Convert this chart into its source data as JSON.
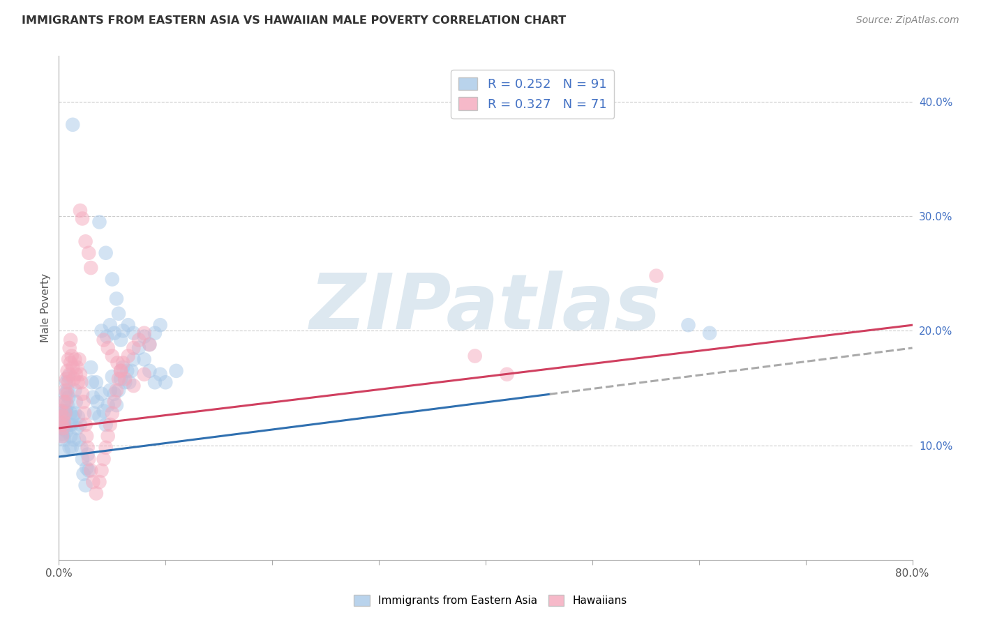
{
  "title": "IMMIGRANTS FROM EASTERN ASIA VS HAWAIIAN MALE POVERTY CORRELATION CHART",
  "source": "Source: ZipAtlas.com",
  "ylabel": "Male Poverty",
  "legend_labels": [
    "Immigrants from Eastern Asia",
    "Hawaiians"
  ],
  "r_blue": 0.252,
  "n_blue": 91,
  "r_pink": 0.327,
  "n_pink": 71,
  "xlim": [
    0.0,
    0.8
  ],
  "ylim": [
    0.0,
    0.44
  ],
  "xtick_show": [
    0.0,
    0.8
  ],
  "yticks_right": [
    0.1,
    0.2,
    0.3,
    0.4
  ],
  "blue_color": "#a8c8e8",
  "pink_color": "#f4a8bc",
  "blue_line_color": "#3070b0",
  "pink_line_color": "#d04060",
  "blue_dash_color": "#aaaaaa",
  "blue_scatter": [
    [
      0.002,
      0.125
    ],
    [
      0.002,
      0.115
    ],
    [
      0.003,
      0.13
    ],
    [
      0.003,
      0.11
    ],
    [
      0.004,
      0.12
    ],
    [
      0.004,
      0.108
    ],
    [
      0.004,
      0.095
    ],
    [
      0.005,
      0.138
    ],
    [
      0.005,
      0.118
    ],
    [
      0.005,
      0.105
    ],
    [
      0.006,
      0.145
    ],
    [
      0.006,
      0.13
    ],
    [
      0.006,
      0.115
    ],
    [
      0.007,
      0.155
    ],
    [
      0.007,
      0.13
    ],
    [
      0.007,
      0.112
    ],
    [
      0.008,
      0.148
    ],
    [
      0.008,
      0.135
    ],
    [
      0.009,
      0.16
    ],
    [
      0.009,
      0.142
    ],
    [
      0.01,
      0.118
    ],
    [
      0.01,
      0.098
    ],
    [
      0.011,
      0.128
    ],
    [
      0.011,
      0.108
    ],
    [
      0.012,
      0.118
    ],
    [
      0.012,
      0.098
    ],
    [
      0.013,
      0.125
    ],
    [
      0.014,
      0.105
    ],
    [
      0.015,
      0.148
    ],
    [
      0.015,
      0.128
    ],
    [
      0.016,
      0.138
    ],
    [
      0.017,
      0.115
    ],
    [
      0.018,
      0.125
    ],
    [
      0.019,
      0.105
    ],
    [
      0.02,
      0.118
    ],
    [
      0.021,
      0.098
    ],
    [
      0.022,
      0.088
    ],
    [
      0.023,
      0.075
    ],
    [
      0.025,
      0.065
    ],
    [
      0.026,
      0.08
    ],
    [
      0.027,
      0.092
    ],
    [
      0.028,
      0.078
    ],
    [
      0.03,
      0.168
    ],
    [
      0.031,
      0.155
    ],
    [
      0.032,
      0.142
    ],
    [
      0.033,
      0.128
    ],
    [
      0.035,
      0.155
    ],
    [
      0.036,
      0.138
    ],
    [
      0.038,
      0.125
    ],
    [
      0.04,
      0.145
    ],
    [
      0.042,
      0.13
    ],
    [
      0.044,
      0.118
    ],
    [
      0.046,
      0.135
    ],
    [
      0.048,
      0.148
    ],
    [
      0.05,
      0.16
    ],
    [
      0.052,
      0.145
    ],
    [
      0.054,
      0.135
    ],
    [
      0.056,
      0.148
    ],
    [
      0.058,
      0.158
    ],
    [
      0.06,
      0.168
    ],
    [
      0.062,
      0.155
    ],
    [
      0.064,
      0.165
    ],
    [
      0.066,
      0.155
    ],
    [
      0.068,
      0.165
    ],
    [
      0.07,
      0.175
    ],
    [
      0.075,
      0.185
    ],
    [
      0.08,
      0.175
    ],
    [
      0.085,
      0.165
    ],
    [
      0.09,
      0.155
    ],
    [
      0.095,
      0.162
    ],
    [
      0.1,
      0.155
    ],
    [
      0.11,
      0.165
    ],
    [
      0.013,
      0.38
    ],
    [
      0.038,
      0.295
    ],
    [
      0.044,
      0.268
    ],
    [
      0.05,
      0.245
    ],
    [
      0.054,
      0.228
    ],
    [
      0.056,
      0.215
    ],
    [
      0.04,
      0.2
    ],
    [
      0.045,
      0.195
    ],
    [
      0.048,
      0.205
    ],
    [
      0.052,
      0.198
    ],
    [
      0.058,
      0.192
    ],
    [
      0.06,
      0.2
    ],
    [
      0.065,
      0.205
    ],
    [
      0.07,
      0.198
    ],
    [
      0.08,
      0.195
    ],
    [
      0.085,
      0.188
    ],
    [
      0.09,
      0.198
    ],
    [
      0.095,
      0.205
    ],
    [
      0.59,
      0.205
    ],
    [
      0.61,
      0.198
    ]
  ],
  "pink_scatter": [
    [
      0.002,
      0.13
    ],
    [
      0.003,
      0.118
    ],
    [
      0.003,
      0.108
    ],
    [
      0.004,
      0.125
    ],
    [
      0.004,
      0.115
    ],
    [
      0.005,
      0.138
    ],
    [
      0.005,
      0.12
    ],
    [
      0.006,
      0.148
    ],
    [
      0.006,
      0.128
    ],
    [
      0.007,
      0.158
    ],
    [
      0.007,
      0.138
    ],
    [
      0.008,
      0.165
    ],
    [
      0.008,
      0.145
    ],
    [
      0.009,
      0.175
    ],
    [
      0.009,
      0.155
    ],
    [
      0.01,
      0.185
    ],
    [
      0.01,
      0.162
    ],
    [
      0.011,
      0.192
    ],
    [
      0.011,
      0.172
    ],
    [
      0.012,
      0.178
    ],
    [
      0.013,
      0.168
    ],
    [
      0.014,
      0.158
    ],
    [
      0.015,
      0.175
    ],
    [
      0.016,
      0.162
    ],
    [
      0.017,
      0.168
    ],
    [
      0.018,
      0.155
    ],
    [
      0.019,
      0.175
    ],
    [
      0.02,
      0.162
    ],
    [
      0.021,
      0.155
    ],
    [
      0.022,
      0.145
    ],
    [
      0.023,
      0.138
    ],
    [
      0.024,
      0.128
    ],
    [
      0.025,
      0.118
    ],
    [
      0.026,
      0.108
    ],
    [
      0.027,
      0.098
    ],
    [
      0.028,
      0.088
    ],
    [
      0.03,
      0.078
    ],
    [
      0.032,
      0.068
    ],
    [
      0.035,
      0.058
    ],
    [
      0.038,
      0.068
    ],
    [
      0.04,
      0.078
    ],
    [
      0.042,
      0.088
    ],
    [
      0.044,
      0.098
    ],
    [
      0.046,
      0.108
    ],
    [
      0.048,
      0.118
    ],
    [
      0.05,
      0.128
    ],
    [
      0.052,
      0.138
    ],
    [
      0.054,
      0.148
    ],
    [
      0.056,
      0.158
    ],
    [
      0.058,
      0.165
    ],
    [
      0.06,
      0.172
    ],
    [
      0.065,
      0.178
    ],
    [
      0.07,
      0.185
    ],
    [
      0.075,
      0.192
    ],
    [
      0.08,
      0.198
    ],
    [
      0.085,
      0.188
    ],
    [
      0.02,
      0.305
    ],
    [
      0.022,
      0.298
    ],
    [
      0.025,
      0.278
    ],
    [
      0.028,
      0.268
    ],
    [
      0.03,
      0.255
    ],
    [
      0.042,
      0.192
    ],
    [
      0.046,
      0.185
    ],
    [
      0.05,
      0.178
    ],
    [
      0.055,
      0.172
    ],
    [
      0.058,
      0.165
    ],
    [
      0.062,
      0.158
    ],
    [
      0.07,
      0.152
    ],
    [
      0.08,
      0.162
    ],
    [
      0.39,
      0.178
    ],
    [
      0.42,
      0.162
    ],
    [
      0.56,
      0.248
    ]
  ],
  "blue_line": {
    "x0": 0.0,
    "x1": 0.8,
    "y0_solid": 0.09,
    "y1_solid": 0.165,
    "solid_end": 0.46,
    "y0": 0.09,
    "y1": 0.185
  },
  "pink_line": {
    "x0": 0.0,
    "x1": 0.8,
    "y0": 0.115,
    "y1": 0.205
  },
  "watermark": "ZIPatlas",
  "watermark_color": "#dde8f0",
  "background_color": "#ffffff",
  "grid_color": "#cccccc"
}
